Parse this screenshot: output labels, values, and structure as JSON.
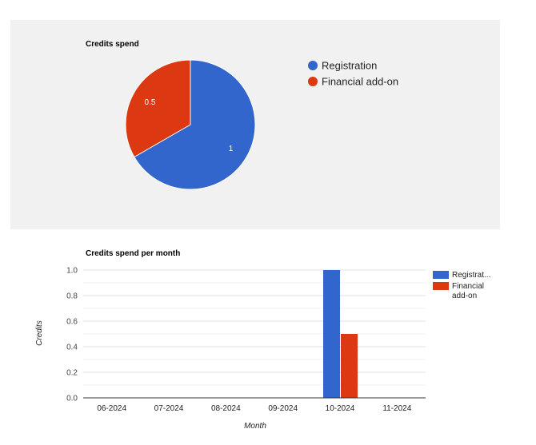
{
  "colors": {
    "registration": "#3366cc",
    "financial": "#dc3912",
    "panel_bg": "#f1f1f1"
  },
  "chart_data": [
    {
      "type": "pie",
      "title": "Credits spend",
      "categories": [
        "Registration",
        "Financial add-on"
      ],
      "values": [
        1,
        0.5
      ],
      "slice_labels": [
        "1",
        "0.5"
      ],
      "legend_position": "right"
    },
    {
      "type": "bar",
      "title": "Credits spend per month",
      "xlabel": "Month",
      "ylabel": "Credits",
      "categories": [
        "06-2024",
        "07-2024",
        "08-2024",
        "09-2024",
        "10-2024",
        "11-2024"
      ],
      "series": [
        {
          "name": "Registration",
          "legend_label": "Registrat...",
          "values": [
            0,
            0,
            0,
            0,
            1,
            0
          ]
        },
        {
          "name": "Financial add-on",
          "legend_label": "Financial add-on",
          "legend_lines": [
            "Financial",
            "add-on"
          ],
          "values": [
            0,
            0,
            0,
            0,
            0.5,
            0
          ]
        }
      ],
      "ylim": [
        0,
        1
      ],
      "yticks": [
        "0.0",
        "0.2",
        "0.4",
        "0.6",
        "0.8",
        "1.0"
      ],
      "grid": true,
      "legend_position": "right"
    }
  ]
}
